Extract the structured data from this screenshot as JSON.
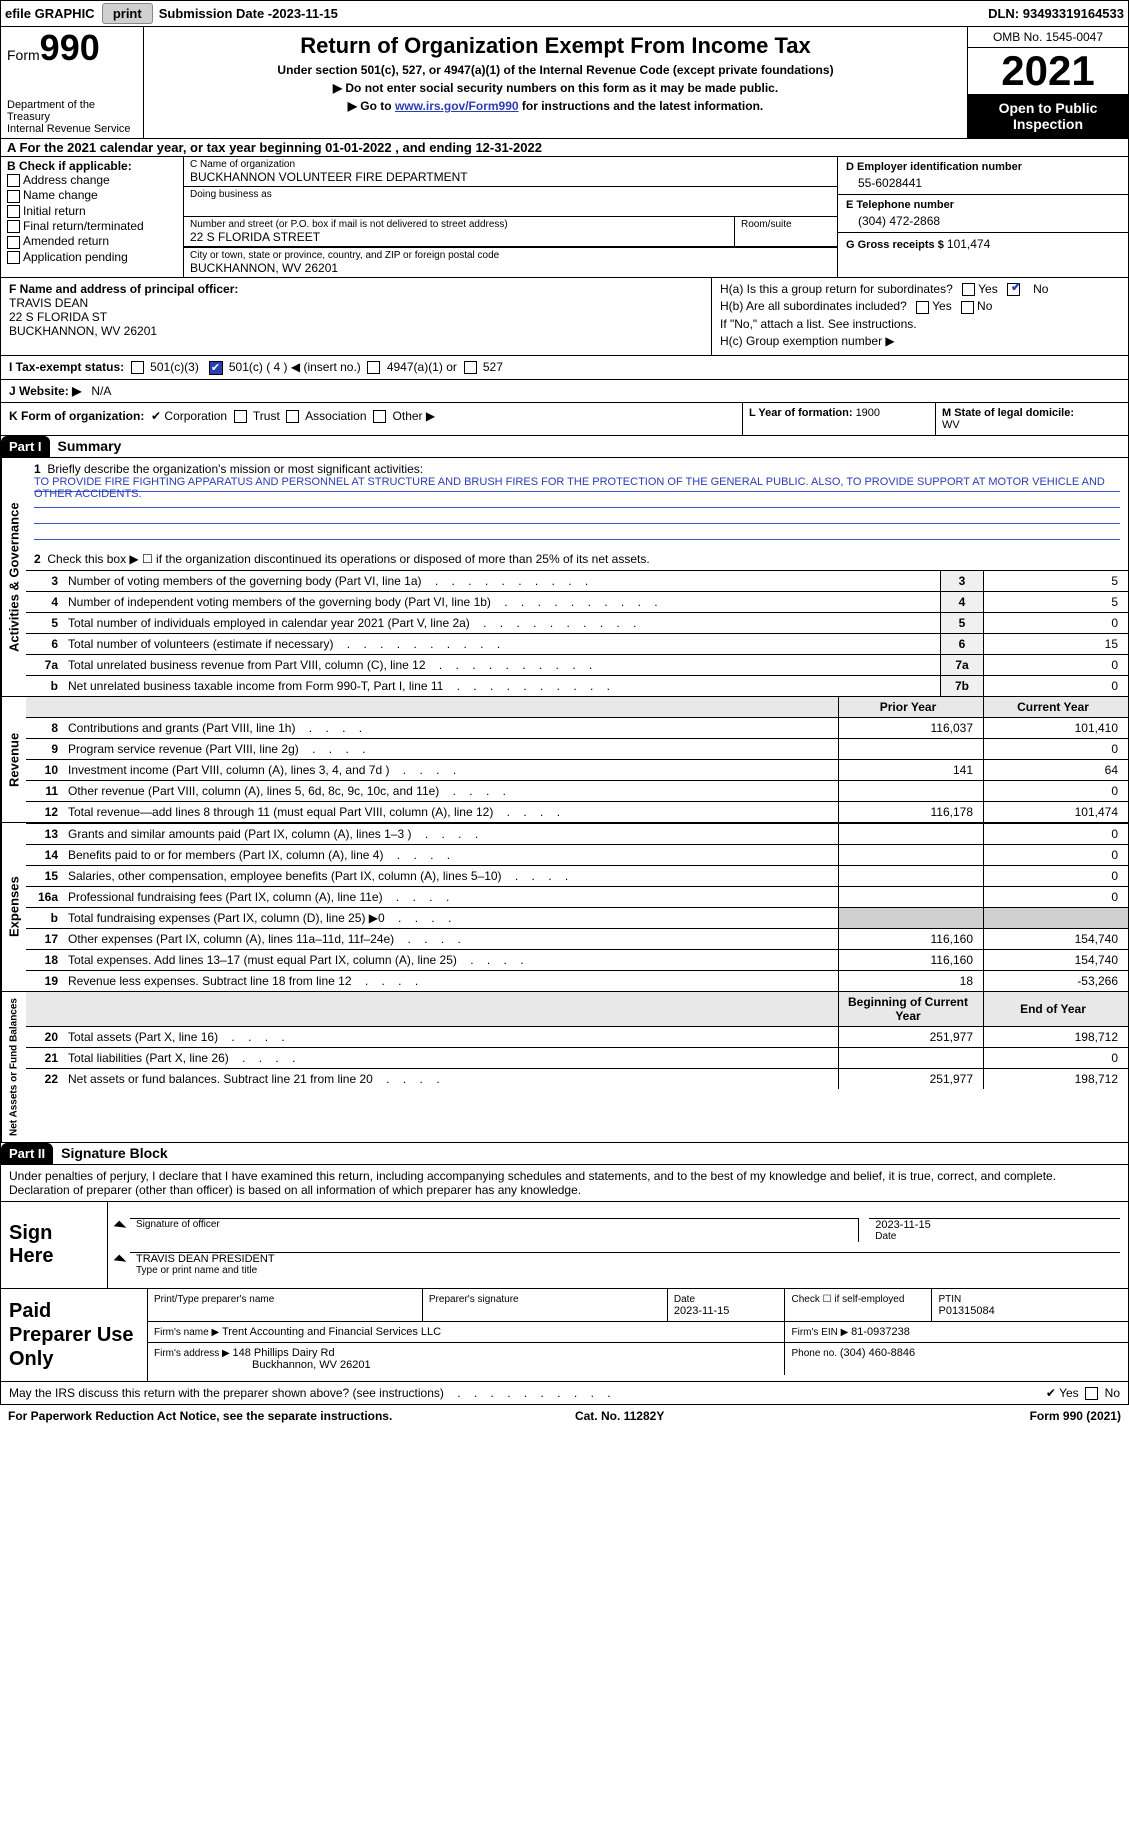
{
  "topbar": {
    "efile": "efile GRAPHIC",
    "print": "print",
    "sub_label": "Submission Date - ",
    "sub_date": "2023-11-15",
    "dln_label": "DLN: ",
    "dln": "93493319164533"
  },
  "header": {
    "form_word": "Form",
    "form_no": "990",
    "dept1": "Department of the Treasury",
    "dept2": "Internal Revenue Service",
    "title": "Return of Organization Exempt From Income Tax",
    "sub": "Under section 501(c), 527, or 4947(a)(1) of the Internal Revenue Code (except private foundations)",
    "note1": "Do not enter social security numbers on this form as it may be made public.",
    "note2_pre": "Go to ",
    "note2_link": "www.irs.gov/Form990",
    "note2_post": " for instructions and the latest information.",
    "omb": "OMB No. 1545-0047",
    "year": "2021",
    "inspection1": "Open to Public",
    "inspection2": "Inspection"
  },
  "period": {
    "text_pre": "A For the 2021 calendar year, or tax year beginning ",
    "begin": "01-01-2022",
    "mid": "   , and ending ",
    "end": "12-31-2022"
  },
  "B": {
    "title": "B Check if applicable:",
    "opts": [
      "Address change",
      "Name change",
      "Initial return",
      "Final return/terminated",
      "Amended return",
      "Application pending"
    ]
  },
  "C": {
    "name_lbl": "C Name of organization",
    "name": "BUCKHANNON VOLUNTEER FIRE DEPARTMENT",
    "dba_lbl": "Doing business as",
    "addr_lbl": "Number and street (or P.O. box if mail is not delivered to street address)",
    "addr": "22 S FLORIDA STREET",
    "room_lbl": "Room/suite",
    "city_lbl": "City or town, state or province, country, and ZIP or foreign postal code",
    "city": "BUCKHANNON, WV  26201"
  },
  "D": {
    "ein_lbl": "D Employer identification number",
    "ein": "55-6028441",
    "tel_lbl": "E Telephone number",
    "tel": "(304) 472-2868",
    "gross_lbl": "G Gross receipts $ ",
    "gross": "101,474"
  },
  "F": {
    "lbl": "F Name and address of principal officer:",
    "name": "TRAVIS DEAN",
    "addr1": "22 S FLORIDA ST",
    "addr2": "BUCKHANNON, WV  26201"
  },
  "H": {
    "a": "H(a)  Is this a group return for subordinates?",
    "b": "H(b)  Are all subordinates included?",
    "note": "If \"No,\" attach a list. See instructions.",
    "c": "H(c)  Group exemption number ▶",
    "yes": "Yes",
    "no": "No"
  },
  "I": {
    "lbl": "I   Tax-exempt status:",
    "o1": "501(c)(3)",
    "o2": "501(c) ( 4 ) ◀ (insert no.)",
    "o3": "4947(a)(1) or",
    "o4": "527"
  },
  "J": {
    "lbl": "J  Website: ▶",
    "val": "N/A"
  },
  "K": {
    "lbl": "K Form of organization:",
    "o1": "Corporation",
    "o2": "Trust",
    "o3": "Association",
    "o4": "Other ▶"
  },
  "L": {
    "lbl": "L Year of formation: ",
    "val": "1900"
  },
  "M": {
    "lbl": "M State of legal domicile:",
    "val": "WV"
  },
  "partI": {
    "hdr": "Part I",
    "title": "Summary",
    "sideA": "Activities & Governance",
    "sideR": "Revenue",
    "sideE": "Expenses",
    "sideN": "Net Assets or Fund Balances",
    "l1_lbl": "Briefly describe the organization's mission or most significant activities:",
    "l1_text": "TO PROVIDE FIRE FIGHTING APPARATUS AND PERSONNEL AT STRUCTURE AND BRUSH FIRES FOR THE PROTECTION OF THE GENERAL PUBLIC. ALSO, TO PROVIDE SUPPORT AT MOTOR VEHICLE AND OTHER ACCIDENTS.",
    "l2": "Check this box ▶ ☐  if the organization discontinued its operations or disposed of more than 25% of its net assets.",
    "prior_hdr": "Prior Year",
    "curr_hdr": "Current Year",
    "begin_hdr": "Beginning of Current Year",
    "end_hdr": "End of Year",
    "rows_ag": [
      {
        "n": "3",
        "d": "Number of voting members of the governing body (Part VI, line 1a)",
        "box": "3",
        "v": "5"
      },
      {
        "n": "4",
        "d": "Number of independent voting members of the governing body (Part VI, line 1b)",
        "box": "4",
        "v": "5"
      },
      {
        "n": "5",
        "d": "Total number of individuals employed in calendar year 2021 (Part V, line 2a)",
        "box": "5",
        "v": "0"
      },
      {
        "n": "6",
        "d": "Total number of volunteers (estimate if necessary)",
        "box": "6",
        "v": "15"
      },
      {
        "n": "7a",
        "d": "Total unrelated business revenue from Part VIII, column (C), line 12",
        "box": "7a",
        "v": "0"
      },
      {
        "n": "b",
        "d": "Net unrelated business taxable income from Form 990-T, Part I, line 11",
        "box": "7b",
        "v": "0"
      }
    ],
    "rows_rev": [
      {
        "n": "8",
        "d": "Contributions and grants (Part VIII, line 1h)",
        "p": "116,037",
        "c": "101,410"
      },
      {
        "n": "9",
        "d": "Program service revenue (Part VIII, line 2g)",
        "p": "",
        "c": "0"
      },
      {
        "n": "10",
        "d": "Investment income (Part VIII, column (A), lines 3, 4, and 7d )",
        "p": "141",
        "c": "64"
      },
      {
        "n": "11",
        "d": "Other revenue (Part VIII, column (A), lines 5, 6d, 8c, 9c, 10c, and 11e)",
        "p": "",
        "c": "0"
      },
      {
        "n": "12",
        "d": "Total revenue—add lines 8 through 11 (must equal Part VIII, column (A), line 12)",
        "p": "116,178",
        "c": "101,474"
      }
    ],
    "rows_exp": [
      {
        "n": "13",
        "d": "Grants and similar amounts paid (Part IX, column (A), lines 1–3 )",
        "p": "",
        "c": "0"
      },
      {
        "n": "14",
        "d": "Benefits paid to or for members (Part IX, column (A), line 4)",
        "p": "",
        "c": "0"
      },
      {
        "n": "15",
        "d": "Salaries, other compensation, employee benefits (Part IX, column (A), lines 5–10)",
        "p": "",
        "c": "0"
      },
      {
        "n": "16a",
        "d": "Professional fundraising fees (Part IX, column (A), line 11e)",
        "p": "",
        "c": "0"
      },
      {
        "n": "b",
        "d": "Total fundraising expenses (Part IX, column (D), line 25) ▶0",
        "p": "GREY",
        "c": "GREY"
      },
      {
        "n": "17",
        "d": "Other expenses (Part IX, column (A), lines 11a–11d, 11f–24e)",
        "p": "116,160",
        "c": "154,740"
      },
      {
        "n": "18",
        "d": "Total expenses. Add lines 13–17 (must equal Part IX, column (A), line 25)",
        "p": "116,160",
        "c": "154,740"
      },
      {
        "n": "19",
        "d": "Revenue less expenses. Subtract line 18 from line 12",
        "p": "18",
        "c": "-53,266"
      }
    ],
    "rows_net": [
      {
        "n": "20",
        "d": "Total assets (Part X, line 16)",
        "p": "251,977",
        "c": "198,712"
      },
      {
        "n": "21",
        "d": "Total liabilities (Part X, line 26)",
        "p": "",
        "c": "0"
      },
      {
        "n": "22",
        "d": "Net assets or fund balances. Subtract line 21 from line 20",
        "p": "251,977",
        "c": "198,712"
      }
    ]
  },
  "partII": {
    "hdr": "Part II",
    "title": "Signature Block",
    "decl": "Under penalties of perjury, I declare that I have examined this return, including accompanying schedules and statements, and to the best of my knowledge and belief, it is true, correct, and complete. Declaration of preparer (other than officer) is based on all information of which preparer has any knowledge."
  },
  "sign": {
    "label": "Sign Here",
    "sig_lbl": "Signature of officer",
    "date_lbl": "Date",
    "date": "2023-11-15",
    "name": "TRAVIS DEAN PRESIDENT",
    "name_lbl": "Type or print name and title"
  },
  "prep": {
    "label": "Paid Preparer Use Only",
    "c1": "Print/Type preparer's name",
    "c2": "Preparer's signature",
    "c3_lbl": "Date",
    "c3": "2023-11-15",
    "c4": "Check ☐ if self-employed",
    "c5_lbl": "PTIN",
    "c5": "P01315084",
    "firm_name_lbl": "Firm's name    ▶ ",
    "firm_name": "Trent Accounting and Financial Services LLC",
    "firm_ein_lbl": "Firm's EIN ▶ ",
    "firm_ein": "81-0937238",
    "firm_addr_lbl": "Firm's address ▶ ",
    "firm_addr1": "148 Phillips Dairy Rd",
    "firm_addr2": "Buckhannon, WV  26201",
    "phone_lbl": "Phone no. ",
    "phone": "(304) 460-8846"
  },
  "discuss": {
    "q": "May the IRS discuss this return with the preparer shown above? (see instructions)",
    "yes": "Yes",
    "no": "No"
  },
  "footer": {
    "l": "For Paperwork Reduction Act Notice, see the separate instructions.",
    "c": "Cat. No. 11282Y",
    "r": "Form 990 (2021)"
  }
}
